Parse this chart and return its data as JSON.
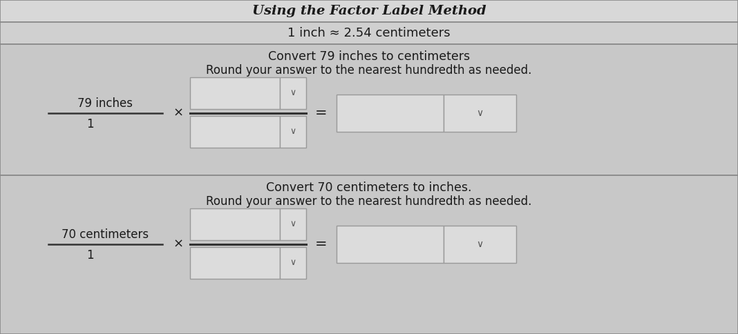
{
  "title": "Using the Factor Label Method",
  "subtitle": "1 inch ≈ 2.54 centimeters",
  "s1_line1": "Convert 79 inches to centimeters",
  "s1_line2": "Round your answer to the nearest hundredth as needed.",
  "s1_top_label": "79 inches",
  "s1_bot_label": "1",
  "s2_line1": "Convert 70 centimeters to inches.",
  "s2_line2": "Round your answer to the nearest hundredth as needed.",
  "s2_top_label": "70 centimeters",
  "s2_bot_label": "1",
  "bg": "#d0d0d0",
  "band1_bg": "#d8d8d8",
  "band2_bg": "#cccccc",
  "section_bg": "#c8c8c8",
  "box_fill": "#dcdcdc",
  "box_edge": "#999999",
  "line_col": "#333333",
  "text_col": "#1a1a1a",
  "border_col": "#888888"
}
